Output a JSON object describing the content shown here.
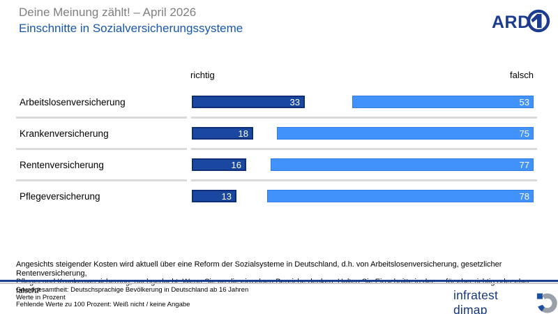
{
  "header": {
    "title": "Deine Meinung zählt! – April 2026",
    "subtitle": "Einschnitte in Sozialversicherungssysteme",
    "ard_logo_text": "ARD"
  },
  "chart_data": {
    "type": "bar",
    "orientation": "horizontal-paired",
    "categories": [
      "Arbeitslosenversicherung",
      "Krankenversicherung",
      "Rentenversicherung",
      "Pflegeversicherung"
    ],
    "series": [
      {
        "name": "richtig",
        "values": [
          33,
          18,
          16,
          13
        ],
        "color": "#1a47a0",
        "align": "left"
      },
      {
        "name": "falsch",
        "values": [
          53,
          75,
          77,
          78
        ],
        "color": "#4292fb",
        "align": "right"
      }
    ],
    "column_headers": {
      "left": "richtig",
      "right": "falsch"
    },
    "unit": "Prozent",
    "value_range": [
      0,
      100
    ],
    "value_labels": "inside-end, white",
    "grid": "off",
    "legend": "column headers above bars"
  },
  "question_lines": [
    "Angesichts steigender Kosten wird aktuell über eine Reform der Sozialsysteme in Deutschland, d.h. von Arbeitslosenversicherung, gesetzlicher Rentenversicherung,",
    "Pflege- und Krankenversicherung, nachgedacht. Wenn Sie an die einzelnen Bereiche denken: Halten Sie Einschnitte in der … für eher richtig oder eher falsch?"
  ],
  "footer": {
    "lines": [
      "Grundgesamtheit: Deutschsprachige Bevölkerung in Deutschland ab 16 Jahren",
      "Werte in Prozent",
      "Fehlende Werte zu 100 Prozent: Weiß nicht / keine Angabe"
    ],
    "brand": "infratest dimap"
  },
  "colors": {
    "title_gray": "#7f7f7f",
    "subtitle_blue": "#1757ab",
    "bar_dark": "#1a47a0",
    "bar_dark_border": "#0e2f78",
    "bar_light": "#4292fb",
    "bar_light_border": "#2f7de2",
    "row_separator": "#dadada",
    "divider_navy": "#1b3f8f",
    "divider_gray": "#c9c9c9",
    "brand_navy": "#16377e",
    "ard_navy": "#1d3c8f"
  }
}
